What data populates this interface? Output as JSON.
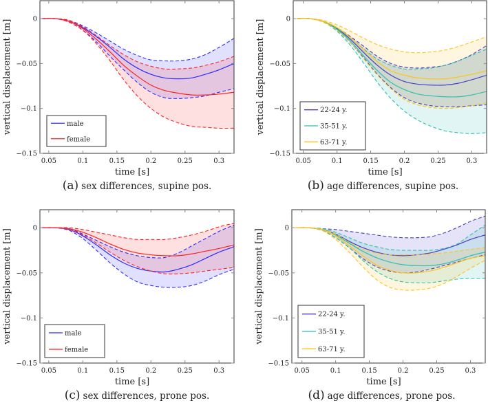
{
  "chart_data": [
    {
      "type": "line",
      "caption_label": "(a)",
      "caption": "sex differences, supine pos.",
      "xlabel": "time [s]",
      "ylabel": "vertical displacement [m]",
      "xlim": [
        0.037,
        0.322
      ],
      "ylim": [
        -0.15,
        0.02
      ],
      "xticks": [
        0.05,
        0.1,
        0.15,
        0.2,
        0.25,
        0.3
      ],
      "xtick_labels": [
        "0.05",
        "0.1",
        "0.15",
        "0.2",
        "0.25",
        "0.3"
      ],
      "yticks": [
        0,
        -0.05,
        -0.1,
        -0.15
      ],
      "ytick_labels": [
        "0",
        "−0.05",
        "−0.1",
        "−0.15"
      ],
      "legend_position": "bottom-left",
      "x": [
        0.04,
        0.06,
        0.08,
        0.1,
        0.12,
        0.14,
        0.16,
        0.18,
        0.2,
        0.22,
        0.24,
        0.26,
        0.28,
        0.3,
        0.322
      ],
      "series": [
        {
          "name": "male",
          "color": "#2b2bff",
          "mean": [
            0,
            0,
            -0.003,
            -0.01,
            -0.02,
            -0.032,
            -0.045,
            -0.055,
            -0.062,
            -0.066,
            -0.067,
            -0.066,
            -0.062,
            -0.057,
            -0.05
          ],
          "upper": [
            0,
            0,
            -0.002,
            -0.008,
            -0.016,
            -0.025,
            -0.034,
            -0.041,
            -0.046,
            -0.047,
            -0.047,
            -0.045,
            -0.04,
            -0.032,
            -0.022
          ],
          "lower": [
            0,
            0,
            -0.004,
            -0.013,
            -0.026,
            -0.042,
            -0.057,
            -0.071,
            -0.082,
            -0.088,
            -0.089,
            -0.088,
            -0.086,
            -0.082,
            -0.078
          ]
        },
        {
          "name": "female",
          "color": "#ff2020",
          "mean": [
            0,
            0,
            -0.003,
            -0.011,
            -0.023,
            -0.037,
            -0.052,
            -0.064,
            -0.074,
            -0.08,
            -0.083,
            -0.085,
            -0.085,
            -0.084,
            -0.082
          ],
          "upper": [
            0,
            0,
            -0.002,
            -0.009,
            -0.019,
            -0.03,
            -0.04,
            -0.048,
            -0.053,
            -0.056,
            -0.056,
            -0.055,
            -0.052,
            -0.048,
            -0.042
          ],
          "lower": [
            0,
            0,
            -0.004,
            -0.013,
            -0.028,
            -0.047,
            -0.068,
            -0.086,
            -0.1,
            -0.11,
            -0.116,
            -0.12,
            -0.121,
            -0.122,
            -0.122
          ]
        }
      ]
    },
    {
      "type": "line",
      "caption_label": "(b)",
      "caption": "age differences, supine pos.",
      "xlabel": "time [s]",
      "ylabel": "vertical displacement [m]",
      "xlim": [
        0.035,
        0.322
      ],
      "ylim": [
        -0.15,
        0.02
      ],
      "xticks": [
        0.05,
        0.1,
        0.15,
        0.2,
        0.25,
        0.3
      ],
      "xtick_labels": [
        "0.05",
        "0.1",
        "0.15",
        "0.2",
        "0.25",
        "0.3"
      ],
      "yticks": [
        0,
        -0.05,
        -0.1,
        -0.15
      ],
      "ytick_labels": [
        "0",
        "−0.05",
        "−0.1",
        "−0.15"
      ],
      "legend_position": "bottom-left",
      "x": [
        0.04,
        0.06,
        0.08,
        0.1,
        0.12,
        0.14,
        0.16,
        0.18,
        0.2,
        0.22,
        0.24,
        0.26,
        0.28,
        0.3,
        0.322
      ],
      "series": [
        {
          "name": "22-24 y.",
          "color": "#4a3cc4",
          "mean": [
            0,
            0,
            -0.003,
            -0.011,
            -0.023,
            -0.038,
            -0.052,
            -0.063,
            -0.07,
            -0.073,
            -0.074,
            -0.074,
            -0.072,
            -0.068,
            -0.063
          ],
          "upper": [
            0,
            0,
            -0.003,
            -0.01,
            -0.02,
            -0.031,
            -0.042,
            -0.05,
            -0.054,
            -0.055,
            -0.054,
            -0.052,
            -0.047,
            -0.04,
            -0.03
          ],
          "lower": [
            0,
            0,
            -0.004,
            -0.013,
            -0.027,
            -0.044,
            -0.062,
            -0.077,
            -0.088,
            -0.094,
            -0.097,
            -0.098,
            -0.098,
            -0.097,
            -0.096
          ]
        },
        {
          "name": "35-51 y.",
          "color": "#2cbfb0",
          "mean": [
            0,
            0,
            -0.003,
            -0.012,
            -0.025,
            -0.042,
            -0.058,
            -0.071,
            -0.079,
            -0.084,
            -0.086,
            -0.087,
            -0.087,
            -0.085,
            -0.081
          ],
          "upper": [
            0,
            0,
            -0.003,
            -0.011,
            -0.021,
            -0.034,
            -0.045,
            -0.052,
            -0.056,
            -0.056,
            -0.055,
            -0.052,
            -0.047,
            -0.041,
            -0.034
          ],
          "lower": [
            0,
            0,
            -0.004,
            -0.014,
            -0.03,
            -0.05,
            -0.071,
            -0.089,
            -0.103,
            -0.113,
            -0.12,
            -0.125,
            -0.127,
            -0.128,
            -0.127
          ]
        },
        {
          "name": "63-71 y.",
          "color": "#ffc21a",
          "mean": [
            0,
            0,
            -0.003,
            -0.01,
            -0.021,
            -0.035,
            -0.048,
            -0.058,
            -0.063,
            -0.066,
            -0.067,
            -0.067,
            -0.065,
            -0.062,
            -0.058
          ],
          "upper": [
            0,
            0,
            -0.002,
            -0.007,
            -0.014,
            -0.022,
            -0.029,
            -0.034,
            -0.037,
            -0.038,
            -0.037,
            -0.035,
            -0.031,
            -0.026,
            -0.02
          ],
          "lower": [
            0,
            0,
            -0.004,
            -0.013,
            -0.027,
            -0.045,
            -0.063,
            -0.078,
            -0.09,
            -0.096,
            -0.099,
            -0.1,
            -0.099,
            -0.097,
            -0.094
          ]
        }
      ]
    },
    {
      "type": "line",
      "caption_label": "(c)",
      "caption": "sex differences, prone pos.",
      "xlabel": "time [s]",
      "ylabel": "vertical displacement [m]",
      "xlim": [
        0.037,
        0.322
      ],
      "ylim": [
        -0.15,
        0.02
      ],
      "xticks": [
        0.05,
        0.1,
        0.15,
        0.2,
        0.25,
        0.3
      ],
      "xtick_labels": [
        "0.05",
        "0.1",
        "0.15",
        "0.2",
        "0.25",
        "0.3"
      ],
      "yticks": [
        0,
        -0.05,
        -0.1,
        -0.15
      ],
      "ytick_labels": [
        "0",
        "−0.05",
        "−0.1",
        "−0.15"
      ],
      "legend_position": "bottom-left",
      "x": [
        0.04,
        0.06,
        0.08,
        0.1,
        0.12,
        0.14,
        0.16,
        0.18,
        0.2,
        0.22,
        0.24,
        0.26,
        0.28,
        0.3,
        0.322
      ],
      "series": [
        {
          "name": "male",
          "color": "#2b2bff",
          "mean": [
            0,
            0,
            -0.002,
            -0.009,
            -0.019,
            -0.03,
            -0.039,
            -0.045,
            -0.048,
            -0.049,
            -0.046,
            -0.041,
            -0.034,
            -0.027,
            -0.021
          ],
          "upper": [
            0,
            0,
            -0.001,
            -0.007,
            -0.014,
            -0.021,
            -0.027,
            -0.031,
            -0.033,
            -0.033,
            -0.028,
            -0.02,
            -0.012,
            -0.004,
            0.003
          ],
          "lower": [
            0,
            0,
            -0.003,
            -0.012,
            -0.025,
            -0.039,
            -0.051,
            -0.06,
            -0.064,
            -0.066,
            -0.066,
            -0.064,
            -0.059,
            -0.052,
            -0.046
          ]
        },
        {
          "name": "female",
          "color": "#ff2020",
          "mean": [
            0,
            0,
            -0.001,
            -0.005,
            -0.011,
            -0.018,
            -0.024,
            -0.028,
            -0.03,
            -0.031,
            -0.031,
            -0.029,
            -0.026,
            -0.023,
            -0.019
          ],
          "upper": [
            0,
            0,
            0,
            -0.002,
            -0.005,
            -0.008,
            -0.011,
            -0.013,
            -0.013,
            -0.013,
            -0.011,
            -0.008,
            -0.004,
            0.001,
            0.005
          ],
          "lower": [
            0,
            0,
            -0.002,
            -0.008,
            -0.017,
            -0.027,
            -0.036,
            -0.043,
            -0.048,
            -0.051,
            -0.051,
            -0.05,
            -0.048,
            -0.046,
            -0.044
          ]
        }
      ]
    },
    {
      "type": "line",
      "caption_label": "(d)",
      "caption": "age differences, prone pos.",
      "xlabel": "time [s]",
      "ylabel": "vertical displacement [m]",
      "xlim": [
        0.035,
        0.322
      ],
      "ylim": [
        -0.15,
        0.02
      ],
      "xticks": [
        0.05,
        0.1,
        0.15,
        0.2,
        0.25,
        0.3
      ],
      "xtick_labels": [
        "0.05",
        "0.1",
        "0.15",
        "0.2",
        "0.25",
        "0.3"
      ],
      "yticks": [
        0,
        -0.05,
        -0.1,
        -0.15
      ],
      "ytick_labels": [
        "0",
        "−0.05",
        "−0.1",
        "−0.15"
      ],
      "legend_position": "bottom-left",
      "x": [
        0.04,
        0.06,
        0.08,
        0.1,
        0.12,
        0.14,
        0.16,
        0.18,
        0.2,
        0.22,
        0.24,
        0.26,
        0.28,
        0.3,
        0.322
      ],
      "series": [
        {
          "name": "22-24 y.",
          "color": "#4a3cc4",
          "mean": [
            0,
            0,
            -0.002,
            -0.007,
            -0.015,
            -0.022,
            -0.027,
            -0.03,
            -0.031,
            -0.03,
            -0.028,
            -0.024,
            -0.019,
            -0.013,
            -0.008
          ],
          "upper": [
            0,
            0,
            -0.001,
            -0.002,
            -0.004,
            -0.006,
            -0.008,
            -0.01,
            -0.011,
            -0.011,
            -0.01,
            -0.006,
            0,
            0.007,
            0.013
          ],
          "lower": [
            0,
            0,
            -0.003,
            -0.011,
            -0.022,
            -0.034,
            -0.043,
            -0.048,
            -0.05,
            -0.049,
            -0.046,
            -0.042,
            -0.038,
            -0.034,
            -0.03
          ]
        },
        {
          "name": "35-51 y.",
          "color": "#2cbfb0",
          "mean": [
            0,
            0,
            -0.002,
            -0.008,
            -0.017,
            -0.026,
            -0.033,
            -0.038,
            -0.041,
            -0.042,
            -0.042,
            -0.04,
            -0.036,
            -0.031,
            -0.027
          ],
          "upper": [
            0,
            0,
            -0.001,
            -0.005,
            -0.011,
            -0.017,
            -0.021,
            -0.024,
            -0.025,
            -0.025,
            -0.025,
            -0.023,
            -0.018,
            -0.008,
            0.003
          ],
          "lower": [
            0,
            0,
            -0.003,
            -0.011,
            -0.022,
            -0.036,
            -0.048,
            -0.056,
            -0.06,
            -0.061,
            -0.061,
            -0.059,
            -0.057,
            -0.056,
            -0.056
          ]
        },
        {
          "name": "63-71 y.",
          "color": "#ffc21a",
          "mean": [
            0,
            0,
            -0.002,
            -0.009,
            -0.02,
            -0.031,
            -0.041,
            -0.047,
            -0.05,
            -0.05,
            -0.048,
            -0.044,
            -0.039,
            -0.034,
            -0.031
          ],
          "upper": [
            0,
            0,
            -0.002,
            -0.007,
            -0.016,
            -0.024,
            -0.028,
            -0.03,
            -0.03,
            -0.03,
            -0.029,
            -0.028,
            -0.026,
            -0.024,
            -0.022
          ],
          "lower": [
            0,
            0,
            -0.003,
            -0.013,
            -0.027,
            -0.043,
            -0.057,
            -0.066,
            -0.069,
            -0.069,
            -0.067,
            -0.062,
            -0.054,
            -0.045,
            -0.036
          ]
        }
      ]
    }
  ]
}
